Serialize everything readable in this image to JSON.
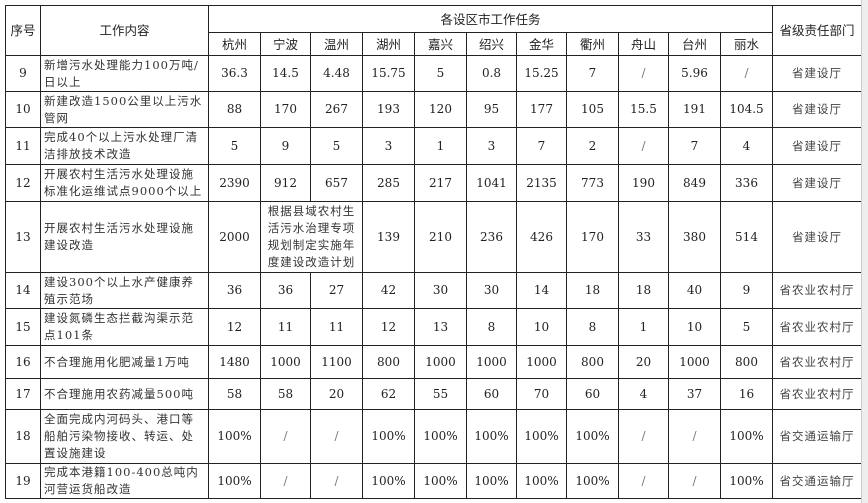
{
  "header": {
    "no": "序号",
    "task": "工作内容",
    "group": "各设区市工作任务",
    "dept": "省级责任部门",
    "cities": [
      "杭州",
      "宁波",
      "温州",
      "湖州",
      "嘉兴",
      "绍兴",
      "金华",
      "衢州",
      "舟山",
      "台州",
      "丽水"
    ]
  },
  "rows": [
    {
      "no": "9",
      "task": "新增污水处理能力100万吨/日以上",
      "values": [
        "36.3",
        "14.5",
        "4.48",
        "15.75",
        "5",
        "0.8",
        "15.25",
        "7",
        "/",
        "5.96",
        "/"
      ],
      "dept": "省建设厅"
    },
    {
      "no": "10",
      "task": "新建改造1500公里以上污水管网",
      "values": [
        "88",
        "170",
        "267",
        "193",
        "120",
        "95",
        "177",
        "105",
        "15.5",
        "191",
        "104.5"
      ],
      "dept": "省建设厅"
    },
    {
      "no": "11",
      "task": "完成40个以上污水处理厂清洁排放技术改造",
      "values": [
        "5",
        "9",
        "5",
        "3",
        "1",
        "3",
        "7",
        "2",
        "/",
        "7",
        "4"
      ],
      "dept": "省建设厅"
    },
    {
      "no": "12",
      "task": "开展农村生活污水处理设施标准化运维试点9000个以上",
      "values": [
        "2390",
        "912",
        "657",
        "285",
        "217",
        "1041",
        "2135",
        "773",
        "190",
        "849",
        "336"
      ],
      "dept": "省建设厅"
    },
    {
      "no": "13",
      "task": "开展农村生活污水处理设施建设改造",
      "values": [
        "2000",
        "根据县域农村生活污水治理专项规划制定实施年度建设改造计划",
        "139",
        "210",
        "236",
        "426",
        "170",
        "33",
        "380",
        "514"
      ],
      "merged_index": 1,
      "dept": "省建设厅"
    },
    {
      "no": "14",
      "task": "建设300个以上水产健康养殖示范场",
      "values": [
        "36",
        "36",
        "27",
        "42",
        "30",
        "30",
        "14",
        "18",
        "18",
        "40",
        "9"
      ],
      "dept": "省农业农村厅"
    },
    {
      "no": "15",
      "task": "建设氮磷生态拦截沟渠示范点101条",
      "values": [
        "12",
        "11",
        "11",
        "12",
        "13",
        "8",
        "10",
        "8",
        "1",
        "10",
        "5"
      ],
      "dept": "省农业农村厅"
    },
    {
      "no": "16",
      "task": "不合理施用化肥减量1万吨",
      "values": [
        "1480",
        "1000",
        "1100",
        "800",
        "1000",
        "1000",
        "1000",
        "800",
        "20",
        "1000",
        "800"
      ],
      "dept": "省农业农村厅"
    },
    {
      "no": "17",
      "task": "不合理施用农药减量500吨",
      "values": [
        "58",
        "58",
        "20",
        "62",
        "55",
        "60",
        "70",
        "60",
        "4",
        "37",
        "16"
      ],
      "dept": "省农业农村厅"
    },
    {
      "no": "18",
      "task": "全面完成内河码头、港口等船舶污染物接收、转运、处置设施建设",
      "values": [
        "100%",
        "/",
        "/",
        "100%",
        "100%",
        "100%",
        "100%",
        "100%",
        "/",
        "/",
        "100%"
      ],
      "dept": "省交通运输厅"
    },
    {
      "no": "19",
      "task": "完成本港籍100-400总吨内河营运货船改造",
      "values": [
        "100%",
        "/",
        "/",
        "100%",
        "100%",
        "100%",
        "100%",
        "100%",
        "/",
        "/",
        "100%"
      ],
      "dept": "省交通运输厅"
    }
  ]
}
